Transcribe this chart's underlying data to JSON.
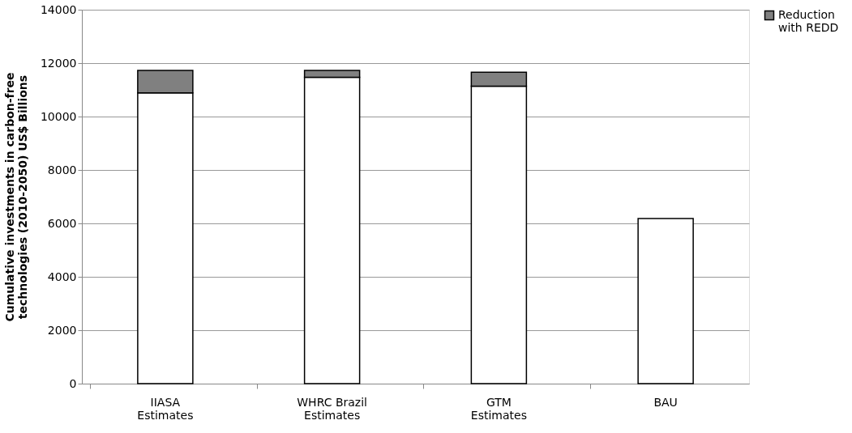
{
  "chart_data": {
    "type": "bar",
    "stacked": true,
    "ylabel": "Cumulative investments in carbon-free technologies (2010-2050) US$ Billions",
    "categories": [
      "IIASA Estimates",
      "WHRC Brazil Estimates",
      "GTM Estimates",
      "BAU"
    ],
    "series": [
      {
        "color": "#ffffff",
        "values": [
          10890,
          11470,
          11140,
          6180
        ]
      },
      {
        "name": "Reduction with REDD",
        "color": "#808080",
        "values": [
          840,
          260,
          520,
          null
        ]
      }
    ],
    "ylim": [
      0,
      14000
    ],
    "yticks": [
      0,
      2000,
      4000,
      6000,
      8000,
      10000,
      12000,
      14000
    ],
    "grid": "y",
    "legend": "right"
  }
}
